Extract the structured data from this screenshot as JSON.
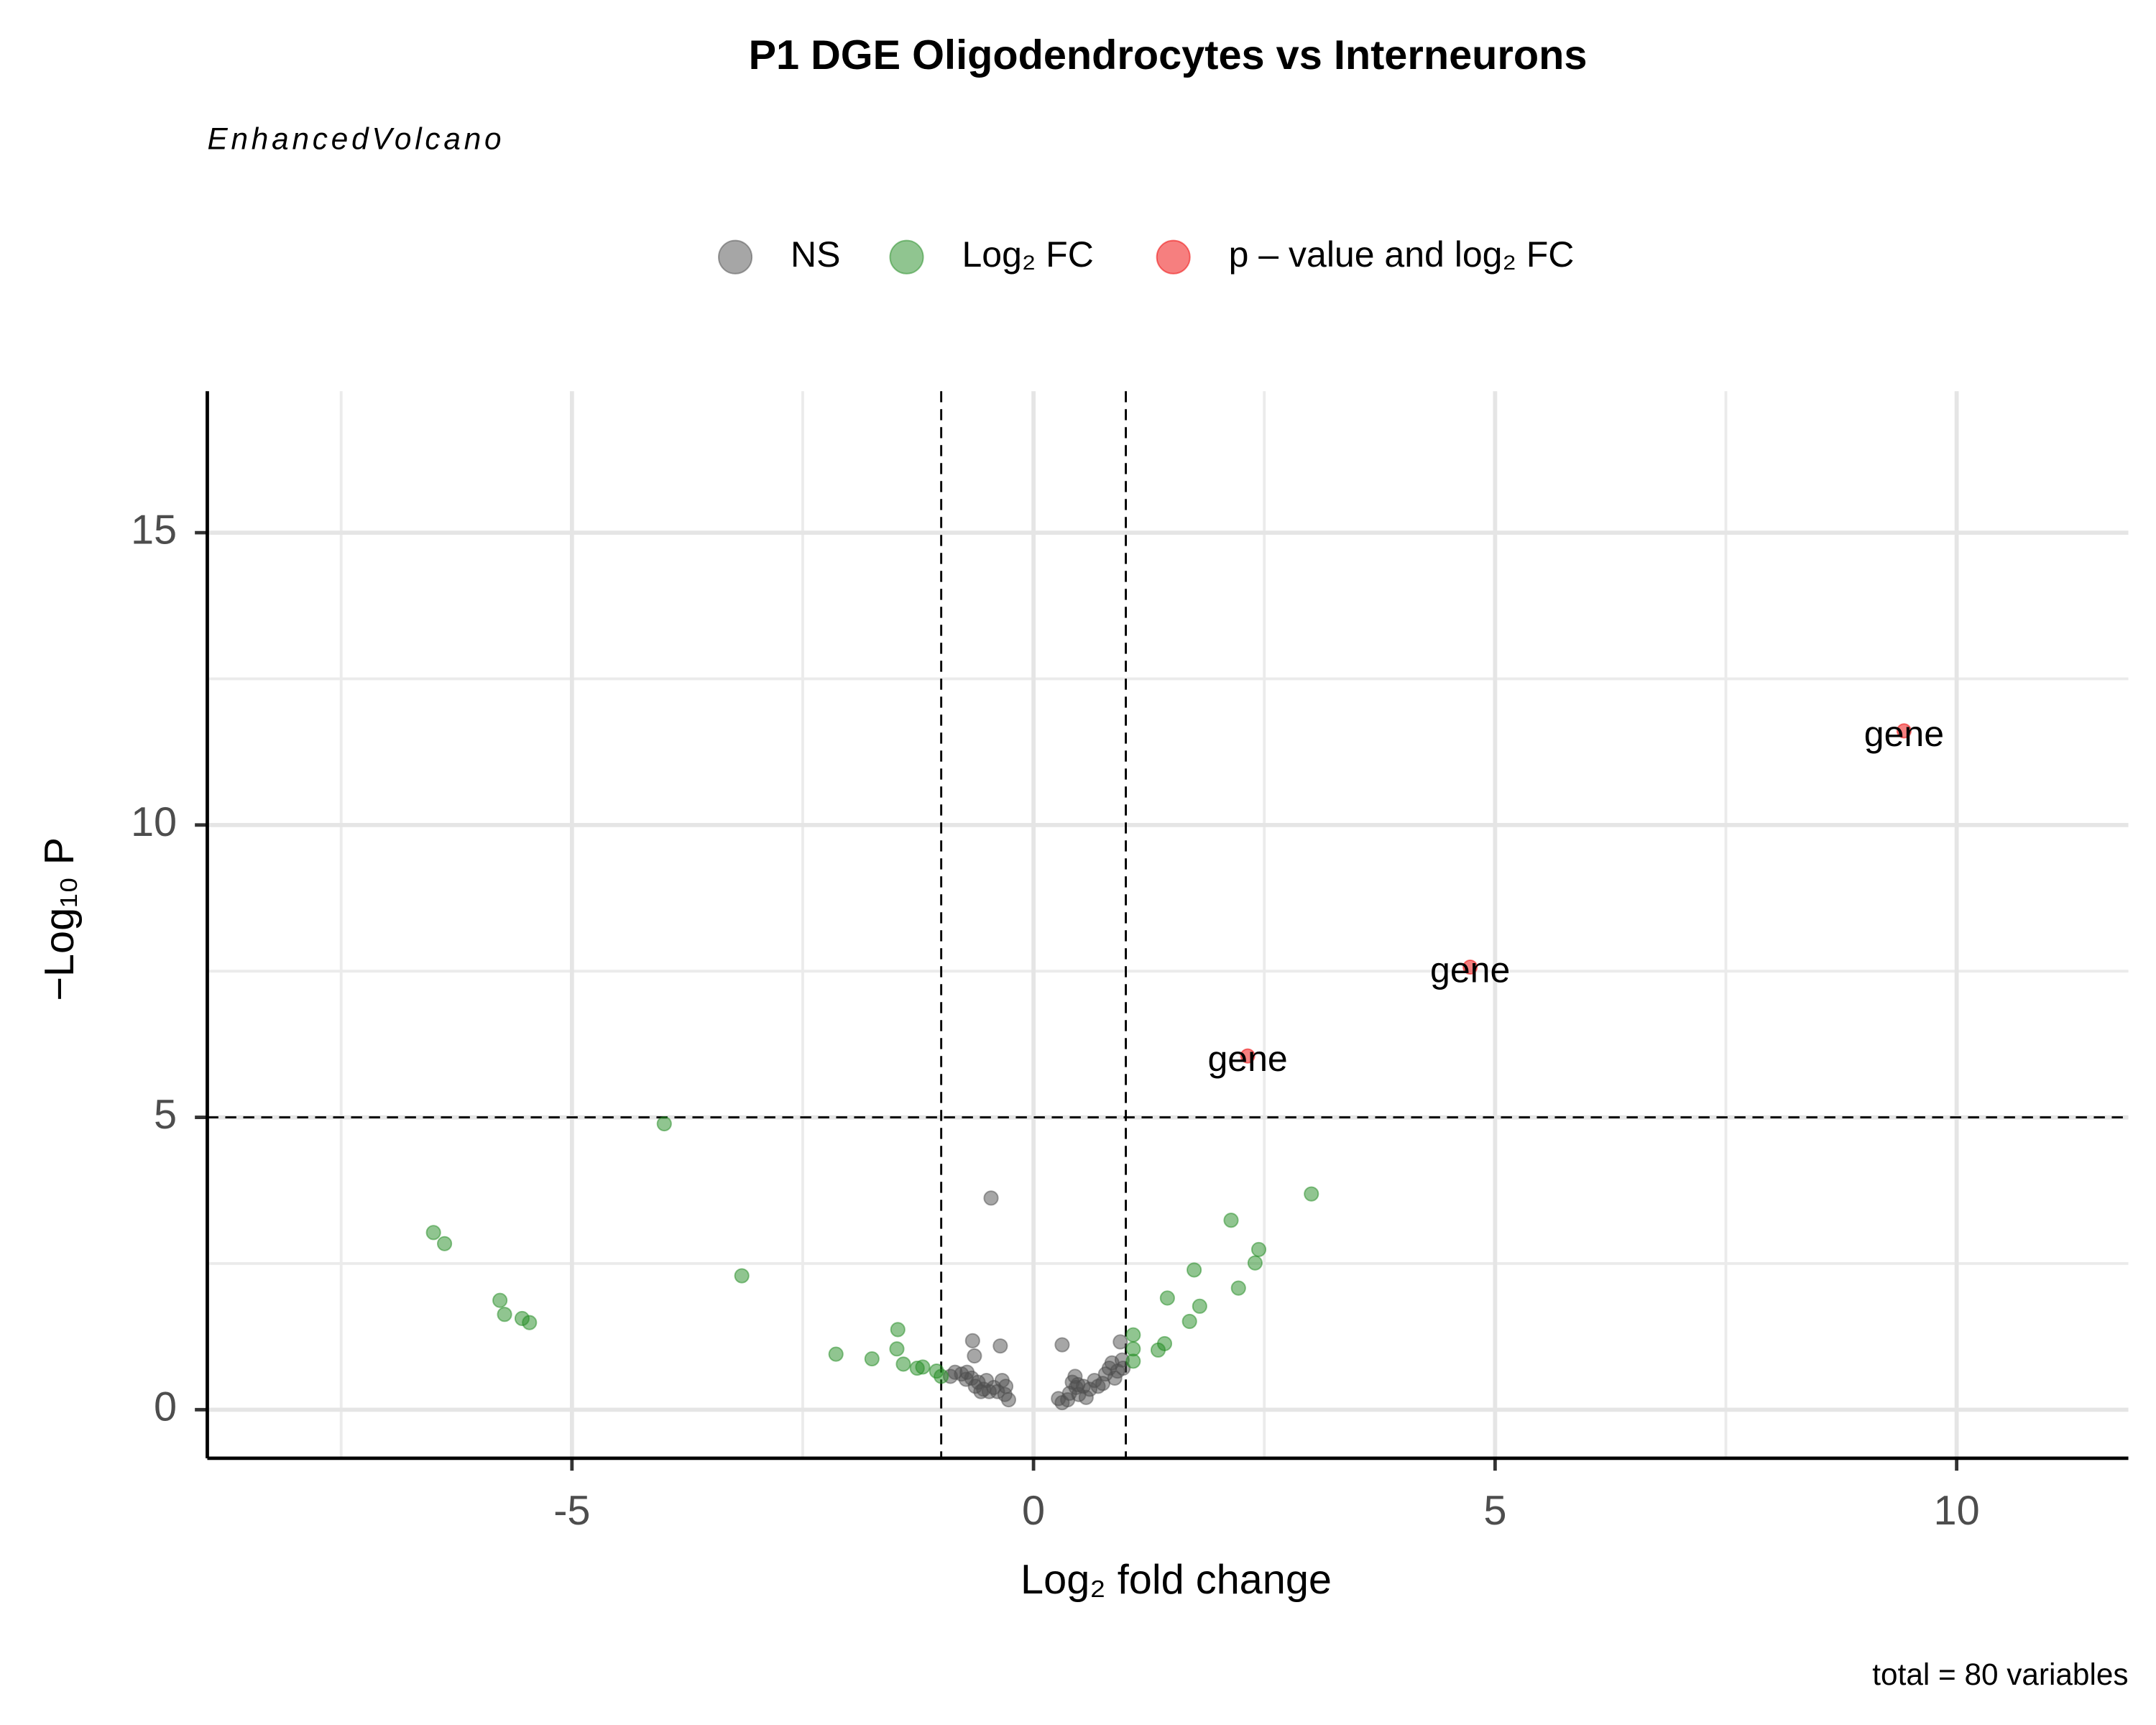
{
  "chart_data": {
    "type": "scatter",
    "title": "P1 DGE Oligodendrocytes vs Interneurons",
    "subtitle": "EnhancedVolcano",
    "caption": "total = 80 variables",
    "x_label": "Log₂ fold change",
    "y_label": "−Log₁₀ P",
    "xlim": [
      -8.95,
      11.86
    ],
    "ylim": [
      -0.83,
      17.42
    ],
    "xticks": [
      -5,
      0,
      5,
      10
    ],
    "yticks": [
      0,
      5,
      10,
      15
    ],
    "xminor": [
      -7.5,
      -2.5,
      2.5,
      7.5
    ],
    "yminor": [
      2.5,
      7.5,
      12.5
    ],
    "grid": true,
    "fc_cutoffs": [
      -1,
      1
    ],
    "p_cutoff": 5,
    "opacity": 0.5,
    "legend": "top",
    "series": [
      {
        "name": "NS",
        "color": "#4d4d4d",
        "x": [
          -0.46,
          -0.66,
          -0.36,
          -0.64,
          0.31,
          0.94,
          -0.85,
          -0.78,
          -0.72,
          -0.67,
          -0.63,
          -0.57,
          -0.51,
          -0.48,
          -0.43,
          -0.39,
          -0.34,
          -0.31,
          -0.27,
          0.27,
          0.31,
          0.39,
          0.42,
          0.45,
          0.46,
          0.49,
          0.54,
          0.57,
          0.61,
          0.66,
          0.7,
          0.75,
          0.82,
          0.85,
          0.88,
          0.91,
          0.96,
          0.97,
          -0.9,
          -0.73,
          -0.6,
          -0.54,
          -0.3,
          0.37,
          0.78,
          0.48
        ],
        "values": [
          3.62,
          1.18,
          1.09,
          0.92,
          1.11,
          1.16,
          0.64,
          0.61,
          0.64,
          0.54,
          0.4,
          0.31,
          0.5,
          0.31,
          0.38,
          0.31,
          0.5,
          0.26,
          0.17,
          0.19,
          0.12,
          0.28,
          0.47,
          0.57,
          0.38,
          0.26,
          0.4,
          0.21,
          0.35,
          0.5,
          0.4,
          0.45,
          0.71,
          0.8,
          0.54,
          0.66,
          0.85,
          0.71,
          0.57,
          0.52,
          0.47,
          0.35,
          0.4,
          0.17,
          0.61,
          0.43
        ]
      },
      {
        "name": "Log₂ FC",
        "color": "#228b22",
        "x": [
          -6.5,
          -6.38,
          -5.78,
          -5.73,
          -5.54,
          -5.46,
          -4.0,
          -3.16,
          -2.14,
          -1.75,
          -1.47,
          -1.48,
          -1.41,
          -1.26,
          -1.2,
          -1.05,
          -1.0,
          1.08,
          1.08,
          1.08,
          1.35,
          1.42,
          1.45,
          1.69,
          1.74,
          1.8,
          2.14,
          2.22,
          2.4,
          2.44,
          3.01
        ],
        "values": [
          3.03,
          2.84,
          1.87,
          1.63,
          1.56,
          1.49,
          4.89,
          2.29,
          0.95,
          0.87,
          1.37,
          1.04,
          0.78,
          0.71,
          0.73,
          0.66,
          0.57,
          1.28,
          1.04,
          0.83,
          1.02,
          1.13,
          1.91,
          1.51,
          2.39,
          1.77,
          3.24,
          2.08,
          2.51,
          2.74,
          3.69
        ]
      },
      {
        "name": "p – value and log₂ FC",
        "color": "#ee0000",
        "x": [
          9.43,
          4.73,
          2.32
        ],
        "values": [
          11.61,
          7.57,
          6.05
        ],
        "labels": [
          "gene",
          "gene",
          "gene"
        ]
      }
    ]
  }
}
